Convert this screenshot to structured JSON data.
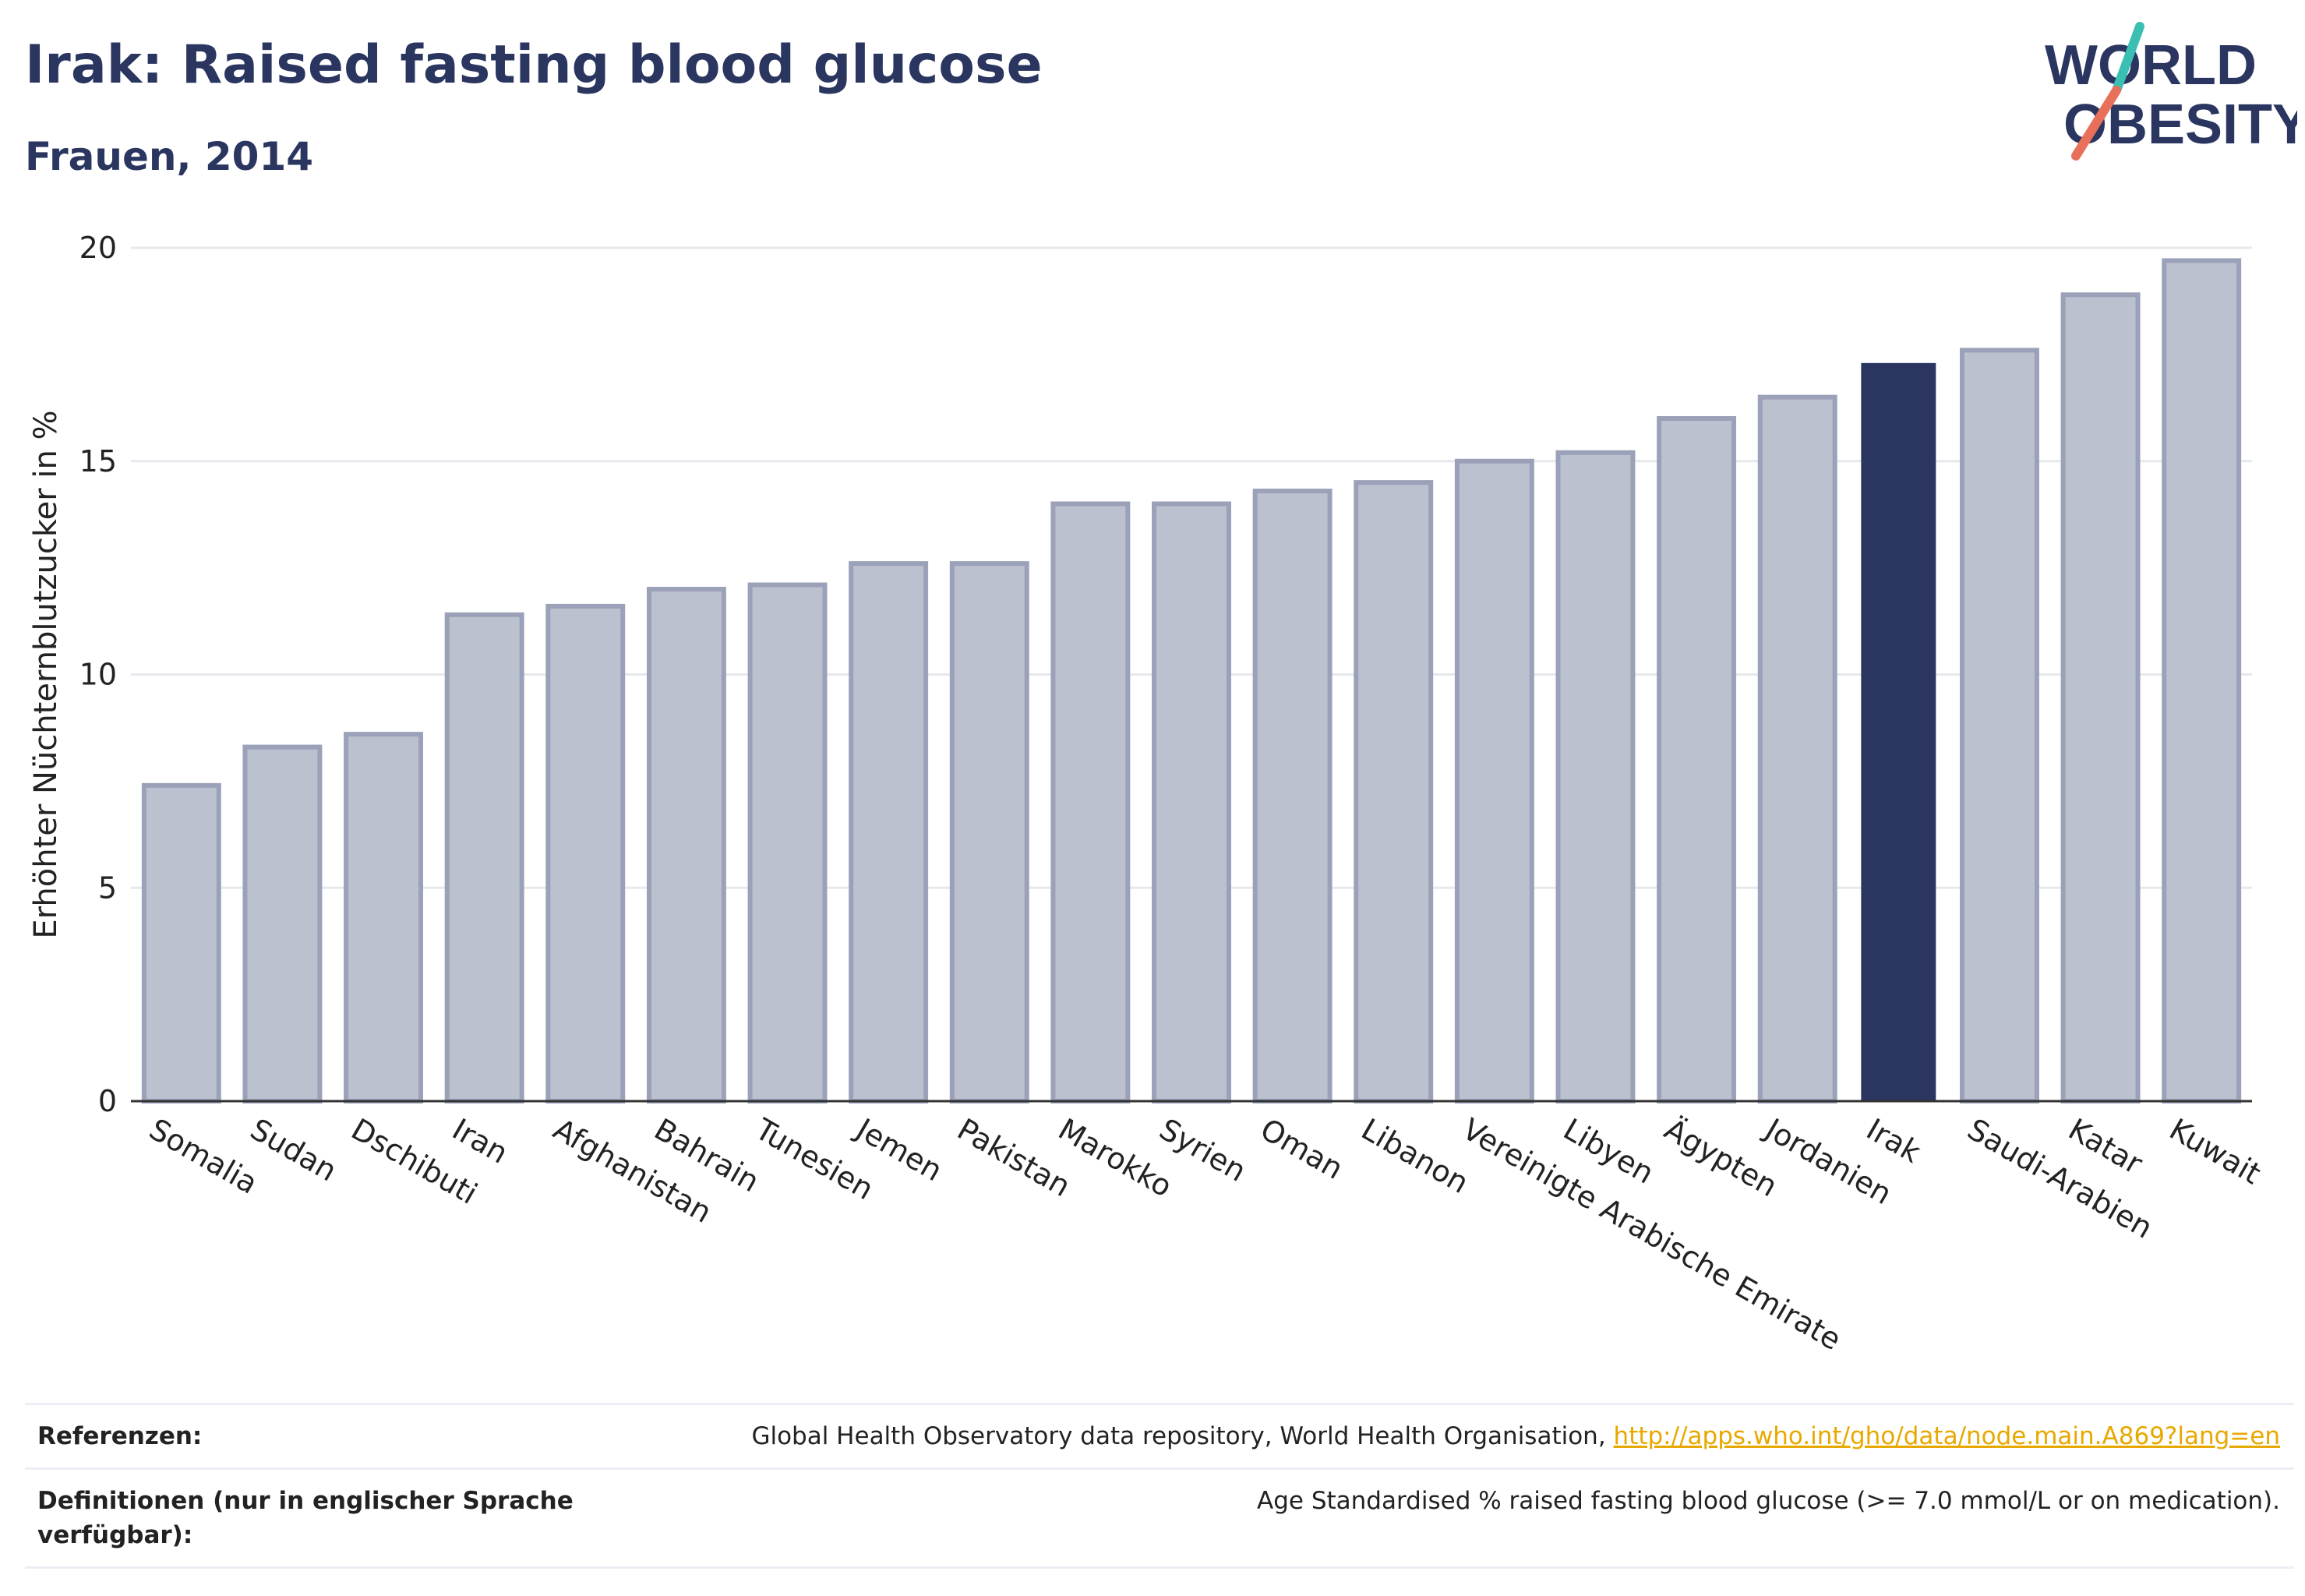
{
  "header": {
    "title": "Irak: Raised fasting blood glucose",
    "subtitle": "Frauen, 2014"
  },
  "logo": {
    "line1": "WORLD",
    "line2": "OBESITY",
    "text_color": "#2a3560",
    "accent_teal": "#3bbfb2",
    "accent_coral": "#e8705a"
  },
  "chart_data": {
    "type": "bar",
    "title": "Irak: Raised fasting blood glucose",
    "subtitle": "Frauen, 2014",
    "xlabel": "",
    "ylabel": "Erhöhter Nüchternblutzucker in %",
    "ylim": [
      0,
      20
    ],
    "yticks": [
      0,
      5,
      10,
      15,
      20
    ],
    "grid": true,
    "categories": [
      "Somalia",
      "Sudan",
      "Dschibuti",
      "Iran",
      "Afghanistan",
      "Bahrain",
      "Tunesien",
      "Jemen",
      "Pakistan",
      "Marokko",
      "Syrien",
      "Oman",
      "Libanon",
      "Vereinigte Arabische Emirate",
      "Libyen",
      "Ägypten",
      "Jordanien",
      "Irak",
      "Saudi-Arabien",
      "Katar",
      "Kuwait"
    ],
    "values": [
      7.4,
      8.3,
      8.6,
      11.4,
      11.6,
      12.0,
      12.1,
      12.6,
      12.6,
      14.0,
      14.0,
      14.3,
      14.5,
      15.0,
      15.2,
      16.0,
      16.5,
      17.3,
      17.6,
      18.9,
      19.7
    ],
    "highlight": "Irak",
    "colors": {
      "bar": "#bcc1cf",
      "bar_outline": "#9aa1b8",
      "highlight": "#2a3560",
      "grid": "#e6e8ee",
      "axis": "#333333"
    }
  },
  "references": {
    "ref_label": "Referenzen:",
    "ref_text": "Global Health Observatory data repository, World Health Organisation,",
    "ref_link": "http://apps.who.int/gho/data/node.main.A869?lang=en",
    "def_label": "Definitionen (nur in englischer Sprache verfügbar):",
    "def_text": "Age Standardised % raised fasting blood glucose (>= 7.0 mmol/L or on medication)."
  }
}
